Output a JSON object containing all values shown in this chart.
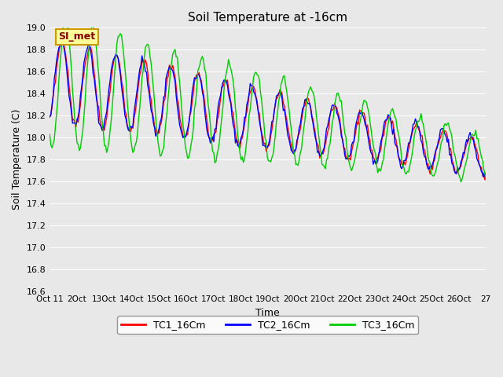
{
  "title": "Soil Temperature at -16cm",
  "xlabel": "Time",
  "ylabel": "Soil Temperature (C)",
  "ylim": [
    16.6,
    19.0
  ],
  "yticks": [
    16.6,
    16.8,
    17.0,
    17.2,
    17.4,
    17.6,
    17.8,
    18.0,
    18.2,
    18.4,
    18.6,
    18.8,
    19.0
  ],
  "xtick_labels": [
    "Oct 11",
    "2Oct",
    "13Oct",
    "14Oct",
    "15Oct",
    "16Oct",
    "17Oct",
    "18Oct",
    "19Oct",
    "20Oct",
    "21Oct",
    "22Oct",
    "23Oct",
    "24Oct",
    "25Oct",
    "26Oct",
    "27"
  ],
  "bg_color": "#e8e8e8",
  "grid_color": "#ffffff",
  "line_colors": [
    "#ff0000",
    "#0000ff",
    "#00cc00"
  ],
  "line_labels": [
    "TC1_16Cm",
    "TC2_16Cm",
    "TC3_16Cm"
  ],
  "legend_label": "SI_met",
  "legend_bg": "#ffff99",
  "legend_border": "#cc9900",
  "legend_text_color": "#880000",
  "n_days": 16,
  "samples_per_day": 24
}
